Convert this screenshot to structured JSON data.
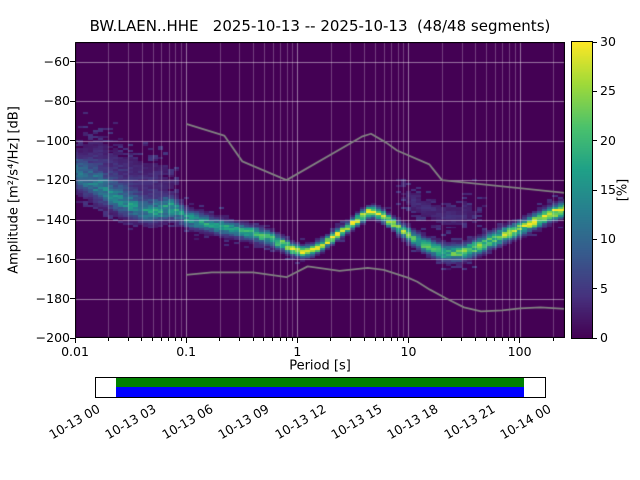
{
  "title": "BW.LAEN..HHE   2025-10-13 -- 2025-10-13  (48/48 segments)",
  "axes": {
    "xlabel": "Period [s]",
    "ylabel": "Amplitude [m²/s⁴/Hz] [dB]",
    "x_ticks": [
      0.01,
      0.1,
      1,
      10,
      100
    ],
    "x_tick_labels": [
      "0.01",
      "0.1",
      "1",
      "10",
      "100"
    ],
    "y_ticks": [
      -60,
      -80,
      -100,
      -120,
      -140,
      -160,
      -180,
      -200
    ],
    "y_tick_labels": [
      "−60",
      "−80",
      "−100",
      "−120",
      "−140",
      "−160",
      "−180",
      "−200"
    ],
    "xlim": [
      0.01,
      256
    ],
    "ylim": [
      -200,
      -50
    ],
    "xscale": "log"
  },
  "colorbar": {
    "label": "[%]",
    "ticks": [
      0,
      5,
      10,
      15,
      20,
      25,
      30
    ],
    "tick_labels": [
      "0",
      "5",
      "10",
      "15",
      "20",
      "25",
      "30"
    ],
    "min": 0,
    "max": 30
  },
  "chart_data": {
    "type": "heatmap",
    "title": "BW.LAEN..HHE   2025-10-13 -- 2025-10-13  (48/48 segments)",
    "xlabel": "Period [s]",
    "ylabel": "Amplitude [m²/s⁴/Hz] [dB]",
    "xlim": [
      0.01,
      256
    ],
    "ylim": [
      -200,
      -50
    ],
    "colorbar_range": [
      0,
      30
    ],
    "colormap": {
      "name": "viridis",
      "stops": [
        [
          0,
          "#440154"
        ],
        [
          0.14,
          "#46327e"
        ],
        [
          0.29,
          "#365c8d"
        ],
        [
          0.43,
          "#277f8e"
        ],
        [
          0.57,
          "#1fa187"
        ],
        [
          0.71,
          "#4ac16d"
        ],
        [
          0.86,
          "#a0da39"
        ],
        [
          1,
          "#fde725"
        ]
      ]
    },
    "style": {
      "background": "#440154",
      "grid": "#ffffff",
      "noise_model": "#828282",
      "spine": "#000000"
    },
    "distribution": {
      "periods": [
        0.01,
        0.013,
        0.017,
        0.022,
        0.03,
        0.04,
        0.05,
        0.06,
        0.07,
        0.085,
        0.1,
        0.13,
        0.17,
        0.22,
        0.3,
        0.4,
        0.55,
        0.7,
        0.9,
        1.1,
        1.4,
        1.8,
        2.2,
        2.8,
        3.5,
        4.5,
        5.5,
        7,
        9,
        11,
        14,
        18,
        22,
        28,
        35,
        45,
        60,
        80,
        100,
        130,
        160,
        200,
        250
      ],
      "mode_db": [
        -116,
        -120,
        -124,
        -128,
        -132,
        -135,
        -136,
        -135,
        -133.5,
        -136,
        -139,
        -141,
        -142.5,
        -144,
        -145.5,
        -147,
        -149.5,
        -152,
        -155,
        -156.5,
        -155.5,
        -152,
        -148.5,
        -144.5,
        -140,
        -135.5,
        -137,
        -141.5,
        -146,
        -149.5,
        -153,
        -155.5,
        -157,
        -157,
        -155.5,
        -153,
        -150,
        -147,
        -144.5,
        -141.5,
        -139,
        -136.5,
        -134.5
      ],
      "mode_percent": [
        11,
        11,
        12,
        12,
        13,
        14,
        14,
        15,
        16,
        15,
        15,
        16,
        16,
        17,
        17,
        18,
        20,
        24,
        27,
        28,
        27,
        26,
        26,
        27,
        29,
        30,
        29,
        26,
        23,
        21,
        20,
        20,
        20,
        20,
        21,
        21,
        22,
        23,
        24,
        25,
        27,
        28,
        28
      ],
      "sigma_db": [
        6.5,
        6,
        5.5,
        5,
        4.5,
        4,
        3.8,
        3.8,
        3.8,
        3.5,
        3.2,
        3,
        2.8,
        2.7,
        2.6,
        2.5,
        2.3,
        2.1,
        1.9,
        1.8,
        1.8,
        1.8,
        1.8,
        1.8,
        1.8,
        1.8,
        1.9,
        2,
        2.2,
        2.4,
        2.5,
        2.6,
        2.7,
        2.7,
        2.7,
        2.7,
        2.6,
        2.6,
        2.5,
        2.5,
        2.4,
        2.4,
        2.3
      ]
    },
    "secondary_clouds": [
      {
        "period_min": 7,
        "period_max": 50,
        "db_offset": 19,
        "percent": 3.5,
        "sigma_db": 4
      },
      {
        "period_min": 0.01,
        "period_max": 0.09,
        "db_offset": 14,
        "percent": 4,
        "sigma_db": 8
      }
    ],
    "noise_models": {
      "nhnm": [
        [
          0.1,
          -91.5
        ],
        [
          0.22,
          -97.4
        ],
        [
          0.32,
          -110.5
        ],
        [
          0.8,
          -120
        ],
        [
          3.8,
          -98
        ],
        [
          4.6,
          -96.5
        ],
        [
          6.3,
          -101
        ],
        [
          7.9,
          -105
        ],
        [
          15.4,
          -112
        ],
        [
          20,
          -120
        ],
        [
          256,
          -126.5
        ]
      ],
      "nlnm": [
        [
          0.1,
          -168
        ],
        [
          0.17,
          -166.7
        ],
        [
          0.4,
          -166.7
        ],
        [
          0.8,
          -169.2
        ],
        [
          1.24,
          -163.7
        ],
        [
          2.4,
          -166
        ],
        [
          4.3,
          -164.5
        ],
        [
          6,
          -165.5
        ],
        [
          10,
          -169.5
        ],
        [
          12,
          -171.5
        ],
        [
          15.6,
          -175.5
        ],
        [
          21.9,
          -180
        ],
        [
          31.6,
          -184.5
        ],
        [
          45,
          -186.5
        ],
        [
          70,
          -186
        ],
        [
          101,
          -185
        ],
        [
          154,
          -184.5
        ],
        [
          256,
          -185.2
        ]
      ]
    }
  },
  "timeline": {
    "labels": [
      "10-13 00",
      "10-13 03",
      "10-13 06",
      "10-13 09",
      "10-13 12",
      "10-13 15",
      "10-13 18",
      "10-13 21",
      "10-14 00"
    ],
    "coverage": {
      "start_frac": 0.045,
      "end_frac": 0.953
    },
    "colors": {
      "top_bar": "#008000",
      "bottom_bar": "#0000ff",
      "box_background": "#ffffff"
    }
  }
}
